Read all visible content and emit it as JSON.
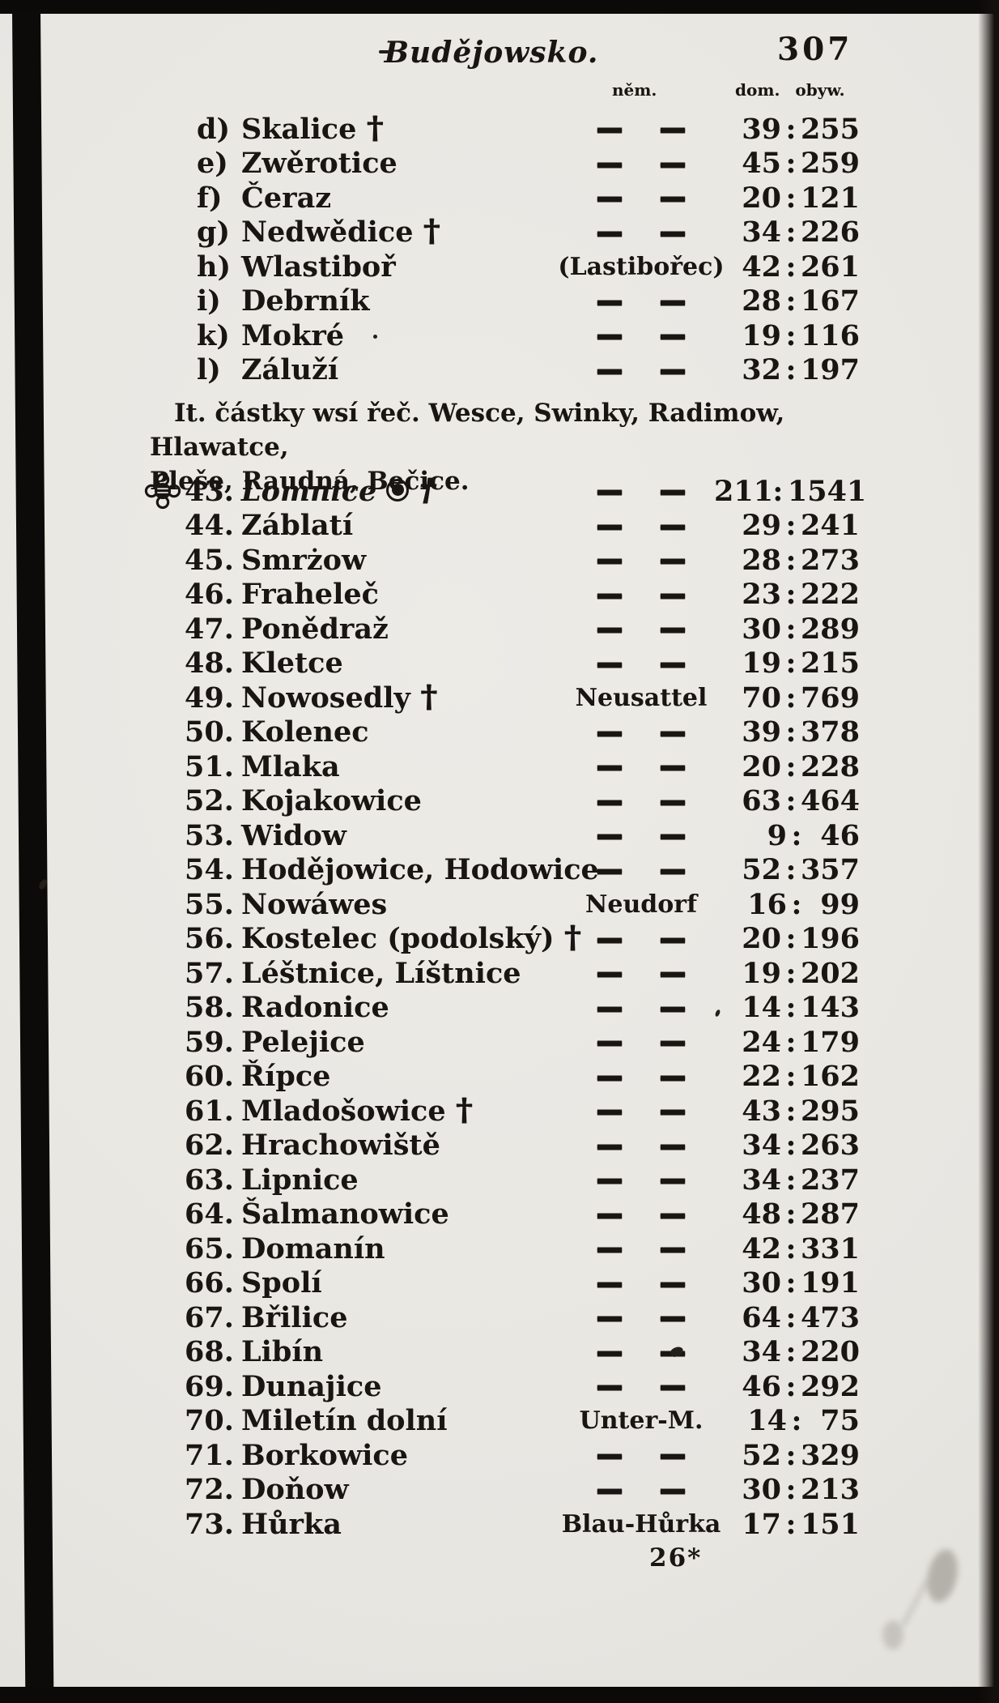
{
  "page_header": {
    "region_title": "Budějowsko.",
    "page_number": "307"
  },
  "table_headers": {
    "german_name_col": "něm.",
    "houses_inhabitants_col": "dom. obyw."
  },
  "glyphs": {
    "dash": "—",
    "cross": "†",
    "colon": ":"
  },
  "letter_items": [
    {
      "label": "d)",
      "name": "Skalice",
      "has_cross": true,
      "german": "",
      "houses": "39",
      "inhabitants": "255"
    },
    {
      "label": "e)",
      "name": "Zwěrotice",
      "has_cross": false,
      "german": "",
      "houses": "45",
      "inhabitants": "259"
    },
    {
      "label": "f)",
      "name": "Čeraz",
      "has_cross": false,
      "german": "",
      "houses": "20",
      "inhabitants": "121"
    },
    {
      "label": "g)",
      "name": "Nedwědice",
      "has_cross": true,
      "german": "",
      "houses": "34",
      "inhabitants": "226"
    },
    {
      "label": "h)",
      "name": "Wlastiboř",
      "has_cross": false,
      "german": "(Lastibořec)",
      "houses": "42",
      "inhabitants": "261"
    },
    {
      "label": "i)",
      "name": "Debrník",
      "has_cross": false,
      "german": "",
      "houses": "28",
      "inhabitants": "167"
    },
    {
      "label": "k)",
      "name": "Mokré",
      "has_cross": false,
      "german": "",
      "houses": "19",
      "inhabitants": "116"
    },
    {
      "label": "l)",
      "name": "Záluží",
      "has_cross": false,
      "german": "",
      "houses": "32",
      "inhabitants": "197"
    }
  ],
  "note_line1": "It. částky wsí řeč. Wesce, Swinky, Radimow, Hlawatce,",
  "note_line2": "Pleše, Raudná, Bečice.",
  "numbered_items": [
    {
      "number": "43.",
      "name": "Lomnice",
      "italic": true,
      "ornament": true,
      "fisheye": true,
      "has_cross": true,
      "german": "",
      "houses": "211",
      "inhabitants": "1541"
    },
    {
      "number": "44.",
      "name": "Záblatí",
      "has_cross": false,
      "german": "",
      "houses": "29",
      "inhabitants": "241"
    },
    {
      "number": "45.",
      "name": "Smrżow",
      "has_cross": false,
      "german": "",
      "houses": "28",
      "inhabitants": "273"
    },
    {
      "number": "46.",
      "name": "Fraheleč",
      "has_cross": false,
      "german": "",
      "houses": "23",
      "inhabitants": "222"
    },
    {
      "number": "47.",
      "name": "Ponědraž",
      "has_cross": false,
      "german": "",
      "houses": "30",
      "inhabitants": "289"
    },
    {
      "number": "48.",
      "name": "Kletce",
      "has_cross": false,
      "german": "",
      "houses": "19",
      "inhabitants": "215"
    },
    {
      "number": "49.",
      "name": "Nowosedly",
      "has_cross": true,
      "german": "Neusattel",
      "houses": "70",
      "inhabitants": "769"
    },
    {
      "number": "50.",
      "name": "Kolenec",
      "has_cross": false,
      "german": "",
      "houses": "39",
      "inhabitants": "378"
    },
    {
      "number": "51.",
      "name": "Mlaka",
      "has_cross": false,
      "german": "",
      "houses": "20",
      "inhabitants": "228"
    },
    {
      "number": "52.",
      "name": "Kojakowice",
      "has_cross": false,
      "german": "",
      "houses": "63",
      "inhabitants": "464"
    },
    {
      "number": "53.",
      "name": "Widow",
      "has_cross": false,
      "german": "",
      "houses": "9",
      "inhabitants": "46"
    },
    {
      "number": "54.",
      "name": "Hodějowice, Hodowice",
      "has_cross": false,
      "german": "",
      "houses": "52",
      "inhabitants": "357"
    },
    {
      "number": "55.",
      "name": "Nowáwes",
      "has_cross": false,
      "german": "Neudorf",
      "houses": "16",
      "inhabitants": "99"
    },
    {
      "number": "56.",
      "name": "Kostelec (podolský)",
      "has_cross": true,
      "german": "",
      "houses": "20",
      "inhabitants": "196"
    },
    {
      "number": "57.",
      "name": "Léštnice, Líštnice",
      "has_cross": false,
      "german": "",
      "houses": "19",
      "inhabitants": "202"
    },
    {
      "number": "58.",
      "name": "Radonice",
      "has_cross": false,
      "german": "",
      "houses": "14",
      "inhabitants": "143"
    },
    {
      "number": "59.",
      "name": "Pelejice",
      "has_cross": false,
      "german": "",
      "houses": "24",
      "inhabitants": "179"
    },
    {
      "number": "60.",
      "name": "Řípce",
      "has_cross": false,
      "german": "",
      "houses": "22",
      "inhabitants": "162"
    },
    {
      "number": "61.",
      "name": "Mladošowice",
      "has_cross": true,
      "german": "",
      "houses": "43",
      "inhabitants": "295"
    },
    {
      "number": "62.",
      "name": "Hrachowiště",
      "has_cross": false,
      "german": "",
      "houses": "34",
      "inhabitants": "263"
    },
    {
      "number": "63.",
      "name": "Lipnice",
      "has_cross": false,
      "german": "",
      "houses": "34",
      "inhabitants": "237"
    },
    {
      "number": "64.",
      "name": "Šalmanowice",
      "has_cross": false,
      "german": "",
      "houses": "48",
      "inhabitants": "287"
    },
    {
      "number": "65.",
      "name": "Domanín",
      "has_cross": false,
      "german": "",
      "houses": "42",
      "inhabitants": "331"
    },
    {
      "number": "66.",
      "name": "Spolí",
      "has_cross": false,
      "german": "",
      "houses": "30",
      "inhabitants": "191"
    },
    {
      "number": "67.",
      "name": "Břilice",
      "has_cross": false,
      "german": "",
      "houses": "64",
      "inhabitants": "473"
    },
    {
      "number": "68.",
      "name": "Libín",
      "has_cross": false,
      "german": "",
      "houses": "34",
      "inhabitants": "220"
    },
    {
      "number": "69.",
      "name": "Dunajice",
      "has_cross": false,
      "german": "",
      "houses": "46",
      "inhabitants": "292"
    },
    {
      "number": "70.",
      "name": "Miletín dolní",
      "has_cross": false,
      "german": "Unter-M.",
      "houses": "14",
      "inhabitants": "75"
    },
    {
      "number": "71.",
      "name": "Borkowice",
      "has_cross": false,
      "german": "",
      "houses": "52",
      "inhabitants": "329"
    },
    {
      "number": "72.",
      "name": "Doňow",
      "has_cross": false,
      "german": "",
      "houses": "30",
      "inhabitants": "213"
    },
    {
      "number": "73.",
      "name": "Hůrka",
      "has_cross": false,
      "german": "Blau-Hůrka",
      "houses": "17",
      "inhabitants": "151"
    }
  ],
  "footer_signature": "26*",
  "colors": {
    "paper": "#e8e6e1",
    "ink": "#181512",
    "border": "#0b0a08"
  }
}
